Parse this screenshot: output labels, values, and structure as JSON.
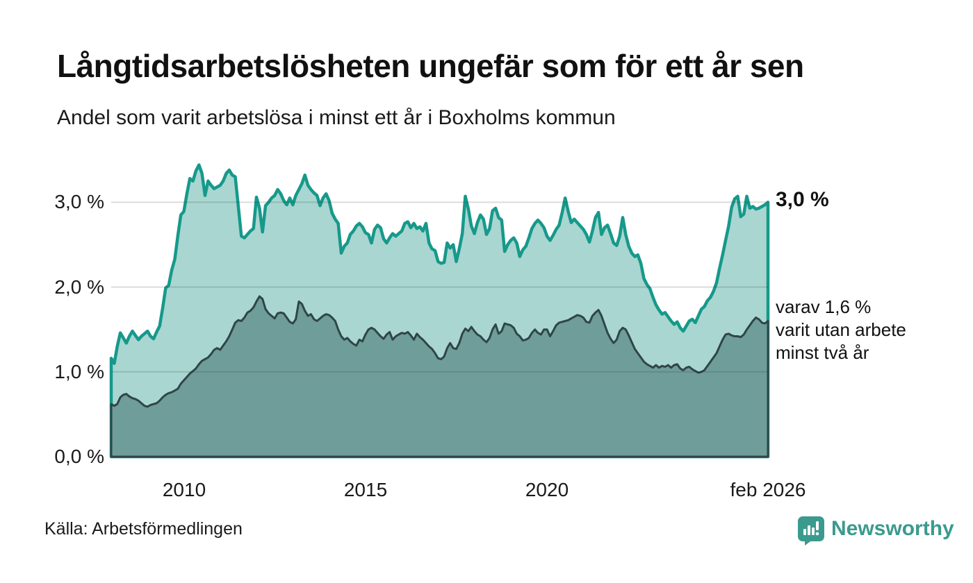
{
  "header": {
    "title": "Långtidsarbetslösheten ungefär som för ett år sen",
    "subtitle": "Andel som varit arbetslösa i minst ett år i Boxholms kommun"
  },
  "annotations": {
    "latest_total": "3,0 %",
    "secondary_line1": "varav 1,6 %",
    "secondary_line2": "varit utan arbete",
    "secondary_line3": "minst två år"
  },
  "source_label": "Källa: Arbetsförmedlingen",
  "logo": {
    "text": "Newsworthy",
    "icon": "newsworthy-speech-bubble-bar-chart-icon",
    "color": "#3b9a8e"
  },
  "colors": {
    "area1_fill": "#a9d6d0",
    "area1_line": "#16998b",
    "area2_fill": "#6f9d99",
    "area2_line": "#2f4548",
    "gridline": "rgba(40,40,40,0.16)",
    "text": "#1a1a1a"
  },
  "chart_data": {
    "type": "area",
    "title": "Långtidsarbetslösheten ungefär som för ett år sen",
    "subtitle": "Andel som varit arbetslösa i minst ett år i Boxholms kommun",
    "unit": "%",
    "frequency": "monthly",
    "x_start": "2008-01",
    "x_end": "2026-02",
    "ylim": [
      0,
      3.5
    ],
    "grid": "horizontal",
    "legend_position": "end-of-line-labels",
    "yticks": [
      {
        "label": "0,0 %",
        "value": 0
      },
      {
        "label": "1,0 %",
        "value": 1
      },
      {
        "label": "2,0 %",
        "value": 2
      },
      {
        "label": "3,0 %",
        "value": 3
      }
    ],
    "xticks": [
      {
        "label": "2010",
        "year": 2010
      },
      {
        "label": "2015",
        "year": 2015
      },
      {
        "label": "2020",
        "year": 2020
      },
      {
        "label": "feb 2026",
        "year": 2026.083
      }
    ],
    "series": [
      {
        "name": "Andel som varit arbetslösa i minst ett år",
        "latest_value": 3.0,
        "values": [
          1.16,
          1.1,
          1.3,
          1.46,
          1.4,
          1.34,
          1.42,
          1.48,
          1.43,
          1.38,
          1.42,
          1.45,
          1.48,
          1.42,
          1.39,
          1.47,
          1.54,
          1.75,
          1.99,
          2.02,
          2.2,
          2.33,
          2.6,
          2.85,
          2.89,
          3.1,
          3.28,
          3.25,
          3.37,
          3.44,
          3.34,
          3.08,
          3.25,
          3.2,
          3.16,
          3.18,
          3.2,
          3.25,
          3.34,
          3.38,
          3.32,
          3.3,
          2.95,
          2.6,
          2.58,
          2.62,
          2.66,
          2.69,
          3.06,
          2.93,
          2.65,
          2.96,
          3.0,
          3.05,
          3.08,
          3.15,
          3.1,
          3.02,
          2.97,
          3.05,
          2.97,
          3.08,
          3.15,
          3.22,
          3.32,
          3.2,
          3.15,
          3.11,
          3.08,
          2.96,
          3.05,
          3.1,
          3.02,
          2.87,
          2.8,
          2.75,
          2.4,
          2.48,
          2.52,
          2.62,
          2.66,
          2.72,
          2.75,
          2.71,
          2.64,
          2.62,
          2.52,
          2.68,
          2.73,
          2.7,
          2.57,
          2.52,
          2.58,
          2.63,
          2.6,
          2.63,
          2.66,
          2.75,
          2.77,
          2.7,
          2.75,
          2.69,
          2.71,
          2.66,
          2.75,
          2.52,
          2.45,
          2.43,
          2.3,
          2.28,
          2.29,
          2.52,
          2.46,
          2.5,
          2.3,
          2.45,
          2.63,
          3.07,
          2.92,
          2.72,
          2.63,
          2.76,
          2.85,
          2.8,
          2.62,
          2.69,
          2.9,
          2.93,
          2.82,
          2.79,
          2.42,
          2.5,
          2.55,
          2.58,
          2.52,
          2.36,
          2.44,
          2.48,
          2.58,
          2.69,
          2.75,
          2.79,
          2.75,
          2.7,
          2.6,
          2.55,
          2.61,
          2.68,
          2.73,
          2.88,
          3.05,
          2.89,
          2.76,
          2.8,
          2.76,
          2.72,
          2.68,
          2.62,
          2.53,
          2.66,
          2.82,
          2.88,
          2.62,
          2.7,
          2.73,
          2.63,
          2.52,
          2.49,
          2.6,
          2.82,
          2.62,
          2.48,
          2.4,
          2.36,
          2.38,
          2.28,
          2.1,
          2.03,
          1.98,
          1.88,
          1.79,
          1.73,
          1.68,
          1.7,
          1.65,
          1.6,
          1.56,
          1.59,
          1.52,
          1.48,
          1.54,
          1.6,
          1.62,
          1.58,
          1.66,
          1.74,
          1.77,
          1.84,
          1.88,
          1.95,
          2.05,
          2.22,
          2.38,
          2.55,
          2.72,
          2.94,
          3.04,
          3.07,
          2.83,
          2.86,
          3.07,
          2.93,
          2.95,
          2.92,
          2.93,
          2.95,
          2.97,
          3.0
        ]
      },
      {
        "name": "varav utan arbete minst två år",
        "latest_value": 1.6,
        "values": [
          0.62,
          0.6,
          0.62,
          0.7,
          0.73,
          0.74,
          0.71,
          0.69,
          0.68,
          0.66,
          0.63,
          0.6,
          0.59,
          0.61,
          0.62,
          0.63,
          0.66,
          0.7,
          0.73,
          0.75,
          0.76,
          0.78,
          0.8,
          0.86,
          0.9,
          0.94,
          0.98,
          1.01,
          1.04,
          1.09,
          1.13,
          1.15,
          1.17,
          1.21,
          1.26,
          1.28,
          1.26,
          1.31,
          1.36,
          1.42,
          1.5,
          1.58,
          1.61,
          1.6,
          1.64,
          1.7,
          1.72,
          1.76,
          1.83,
          1.89,
          1.86,
          1.74,
          1.69,
          1.66,
          1.63,
          1.69,
          1.7,
          1.69,
          1.64,
          1.59,
          1.57,
          1.62,
          1.83,
          1.8,
          1.72,
          1.66,
          1.68,
          1.62,
          1.6,
          1.63,
          1.66,
          1.68,
          1.67,
          1.64,
          1.6,
          1.5,
          1.42,
          1.38,
          1.4,
          1.36,
          1.33,
          1.31,
          1.38,
          1.36,
          1.44,
          1.5,
          1.52,
          1.5,
          1.46,
          1.42,
          1.39,
          1.44,
          1.47,
          1.38,
          1.42,
          1.44,
          1.46,
          1.45,
          1.47,
          1.43,
          1.38,
          1.45,
          1.41,
          1.38,
          1.34,
          1.3,
          1.27,
          1.22,
          1.16,
          1.15,
          1.18,
          1.28,
          1.34,
          1.28,
          1.27,
          1.34,
          1.45,
          1.51,
          1.48,
          1.53,
          1.48,
          1.44,
          1.42,
          1.38,
          1.35,
          1.4,
          1.5,
          1.56,
          1.45,
          1.48,
          1.57,
          1.56,
          1.55,
          1.52,
          1.45,
          1.42,
          1.37,
          1.38,
          1.4,
          1.46,
          1.5,
          1.46,
          1.44,
          1.5,
          1.5,
          1.42,
          1.48,
          1.55,
          1.58,
          1.59,
          1.6,
          1.61,
          1.63,
          1.65,
          1.67,
          1.66,
          1.64,
          1.59,
          1.58,
          1.66,
          1.7,
          1.73,
          1.66,
          1.56,
          1.46,
          1.39,
          1.34,
          1.38,
          1.48,
          1.52,
          1.5,
          1.43,
          1.35,
          1.27,
          1.22,
          1.17,
          1.12,
          1.09,
          1.07,
          1.05,
          1.08,
          1.05,
          1.07,
          1.06,
          1.08,
          1.05,
          1.08,
          1.09,
          1.04,
          1.02,
          1.05,
          1.06,
          1.03,
          1.01,
          0.99,
          1.0,
          1.02,
          1.07,
          1.12,
          1.17,
          1.22,
          1.3,
          1.38,
          1.44,
          1.45,
          1.43,
          1.42,
          1.42,
          1.41,
          1.44,
          1.5,
          1.55,
          1.6,
          1.64,
          1.62,
          1.58,
          1.57,
          1.6
        ]
      }
    ]
  }
}
